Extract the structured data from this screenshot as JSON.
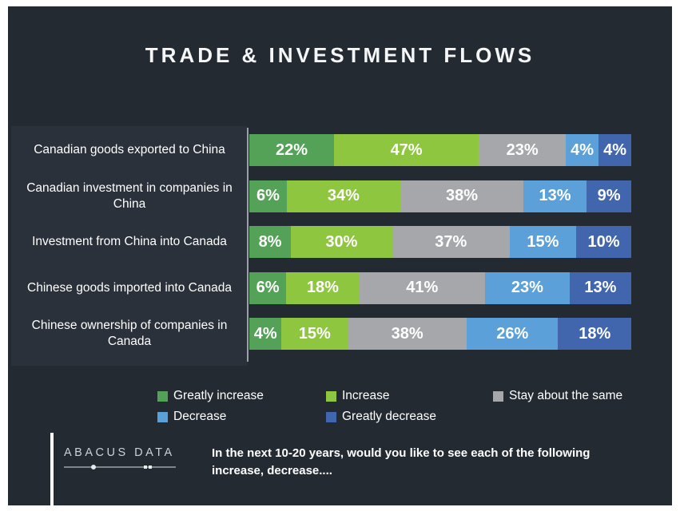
{
  "slide": {
    "title": "TRADE & INVESTMENT FLOWS",
    "background_color": "#232a32",
    "label_panel_color": "#2a313a"
  },
  "chart_data": {
    "type": "bar",
    "orientation": "horizontal",
    "stacked": true,
    "grid": false,
    "legend_position": "bottom",
    "data_labels": true,
    "value_suffix": "%",
    "xlim": [
      0,
      100
    ],
    "categories": [
      "Canadian goods exported to China",
      "Canadian investment in companies in China",
      "Investment from China into Canada",
      "Chinese goods imported into Canada",
      "Chinese ownership of companies in Canada"
    ],
    "series": [
      {
        "name": "Greatly increase",
        "color": "#54a258",
        "values": [
          22,
          6,
          8,
          6,
          4
        ]
      },
      {
        "name": "Increase",
        "color": "#8ec63f",
        "values": [
          47,
          34,
          30,
          18,
          15
        ]
      },
      {
        "name": "Stay about the same",
        "color": "#a5a7aa",
        "values": [
          23,
          38,
          37,
          41,
          38
        ]
      },
      {
        "name": "Decrease",
        "color": "#5ba0d8",
        "values": [
          4,
          13,
          15,
          23,
          26
        ]
      },
      {
        "name": "Greatly decrease",
        "color": "#4166ae",
        "values": [
          4,
          9,
          10,
          13,
          18
        ]
      }
    ]
  },
  "footer": {
    "logo_text": "ABACUS DATA",
    "note_line1": "In the next 10-20 years, would you like to see each of the following",
    "note_line2": "increase, decrease...."
  }
}
